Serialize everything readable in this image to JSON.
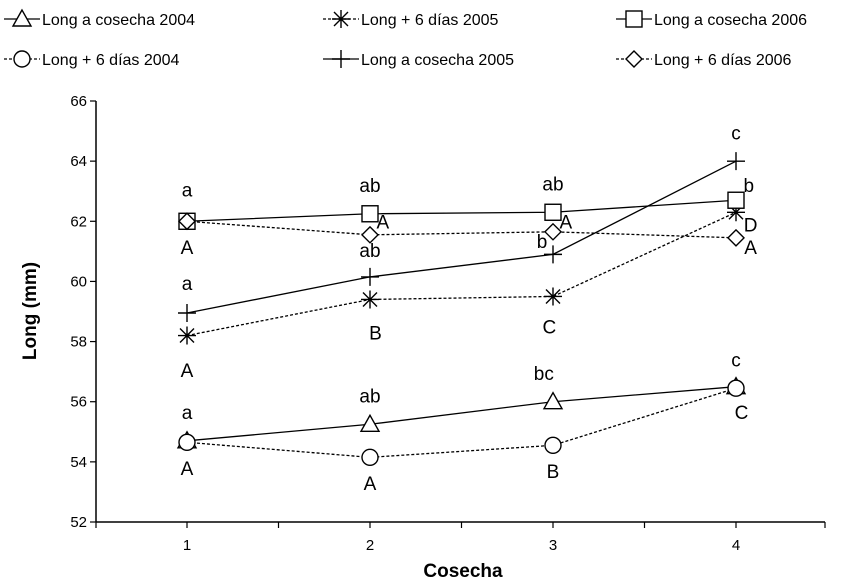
{
  "chart_data": {
    "type": "line",
    "xlabel": "Cosecha",
    "ylabel": "Long (mm)",
    "categories": [
      "1",
      "2",
      "3",
      "4"
    ],
    "ylim": [
      52,
      66
    ],
    "yticks": [
      "52",
      "54",
      "56",
      "58",
      "60",
      "62",
      "64",
      "66"
    ],
    "grid": false,
    "legend_position": "top",
    "series": [
      {
        "name": "Long a cosecha 2004",
        "marker": "triangle",
        "dashed": false,
        "values": [
          54.7,
          55.25,
          56.0,
          56.5
        ]
      },
      {
        "name": "Long + 6 días 2004",
        "marker": "circle",
        "dashed": true,
        "values": [
          54.65,
          54.15,
          54.55,
          56.45
        ]
      },
      {
        "name": "Long + 6 días 2005",
        "marker": "star",
        "dashed": true,
        "values": [
          58.2,
          59.4,
          59.5,
          62.3
        ]
      },
      {
        "name": "Long a cosecha 2005",
        "marker": "plus",
        "dashed": false,
        "values": [
          58.95,
          60.15,
          60.9,
          64.0
        ]
      },
      {
        "name": "Long a cosecha 2006",
        "marker": "square",
        "dashed": false,
        "values": [
          62.0,
          62.25,
          62.3,
          62.7
        ]
      },
      {
        "name": "Long + 6 días 2006",
        "marker": "diamond",
        "dashed": true,
        "values": [
          62.0,
          61.55,
          61.65,
          61.45
        ]
      }
    ],
    "annotations": [
      {
        "text": "a",
        "x": 1,
        "y": 63.05
      },
      {
        "text": "A",
        "x": 1,
        "y": 61.15
      },
      {
        "text": "a",
        "x": 1,
        "y": 59.95
      },
      {
        "text": "A",
        "x": 1,
        "y": 57.05
      },
      {
        "text": "a",
        "x": 1,
        "y": 55.65
      },
      {
        "text": "A",
        "x": 1,
        "y": 53.8
      },
      {
        "text": "ab",
        "x": 2,
        "y": 63.2
      },
      {
        "text": "A",
        "x": 2.07,
        "y": 62.0
      },
      {
        "text": "ab",
        "x": 2,
        "y": 61.05
      },
      {
        "text": "B",
        "x": 2.03,
        "y": 58.3
      },
      {
        "text": "ab",
        "x": 2,
        "y": 56.2
      },
      {
        "text": "A",
        "x": 2,
        "y": 53.3
      },
      {
        "text": "ab",
        "x": 3,
        "y": 63.25
      },
      {
        "text": "A",
        "x": 3.07,
        "y": 62.0
      },
      {
        "text": "b",
        "x": 2.94,
        "y": 61.35
      },
      {
        "text": "C",
        "x": 2.98,
        "y": 58.5
      },
      {
        "text": "bc",
        "x": 2.95,
        "y": 56.95
      },
      {
        "text": "B",
        "x": 3,
        "y": 53.7
      },
      {
        "text": "c",
        "x": 4,
        "y": 64.95
      },
      {
        "text": "b",
        "x": 4.07,
        "y": 63.2
      },
      {
        "text": "D",
        "x": 4.08,
        "y": 61.9
      },
      {
        "text": "A",
        "x": 4.08,
        "y": 61.15
      },
      {
        "text": "c",
        "x": 4,
        "y": 57.4
      },
      {
        "text": "C",
        "x": 4.03,
        "y": 55.65
      }
    ]
  }
}
